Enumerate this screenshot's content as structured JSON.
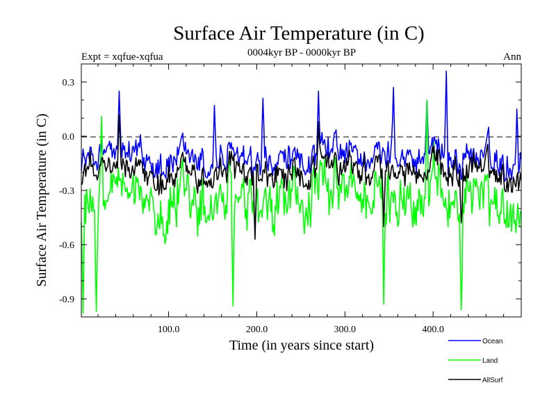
{
  "chart_data": {
    "type": "line",
    "title": "Surface Air Temperature (in C)",
    "subtitle": "0004kyr BP - 0000kyr BP",
    "experiment_label": "Expt = xqfue-xqfua",
    "season_label": "Ann",
    "xlabel": "Time (in years since start)",
    "ylabel": "Surface Air Temperature (in C)",
    "xlim": [
      1,
      500
    ],
    "ylim": [
      -1.0,
      0.4
    ],
    "xticks": [
      100,
      200,
      300,
      400
    ],
    "xtick_labels": [
      "100.0",
      "200.0",
      "300.0",
      "400.0"
    ],
    "yticks": [
      0.3,
      0.0,
      -0.3,
      -0.6,
      -0.9
    ],
    "ytick_labels": [
      "0.3",
      "0.0",
      "-0.3",
      "-0.6",
      "-0.9"
    ],
    "reference_line": 0.0,
    "legend_position": "bottom-right",
    "series": [
      {
        "name": "Ocean",
        "color": "#0000ff",
        "mean": -0.12,
        "spread": 0.1,
        "min": -0.42,
        "max": 0.36,
        "events": [
          [
            44,
            0.25
          ],
          [
            152,
            0.17
          ],
          [
            207,
            0.21
          ],
          [
            270,
            0.25
          ],
          [
            355,
            0.27
          ],
          [
            393,
            0.2
          ],
          [
            415,
            0.36
          ],
          [
            463,
            0.05
          ],
          [
            495,
            0.15
          ]
        ]
      },
      {
        "name": "Land",
        "color": "#00ff00",
        "mean": -0.35,
        "spread": 0.18,
        "min": -0.98,
        "max": 0.2,
        "events": [
          [
            3,
            -0.98
          ],
          [
            18,
            -0.97
          ],
          [
            173,
            -0.94
          ],
          [
            344,
            -0.93
          ],
          [
            432,
            -0.96
          ],
          [
            393,
            0.2
          ],
          [
            24,
            0.11
          ]
        ]
      },
      {
        "name": "AllSurf",
        "color": "#000000",
        "mean": -0.2,
        "spread": 0.1,
        "min": -0.57,
        "max": 0.12,
        "events": [
          [
            44,
            0.12
          ],
          [
            270,
            0.08
          ],
          [
            198,
            -0.57
          ],
          [
            344,
            -0.5
          ],
          [
            432,
            -0.48
          ]
        ]
      }
    ]
  }
}
